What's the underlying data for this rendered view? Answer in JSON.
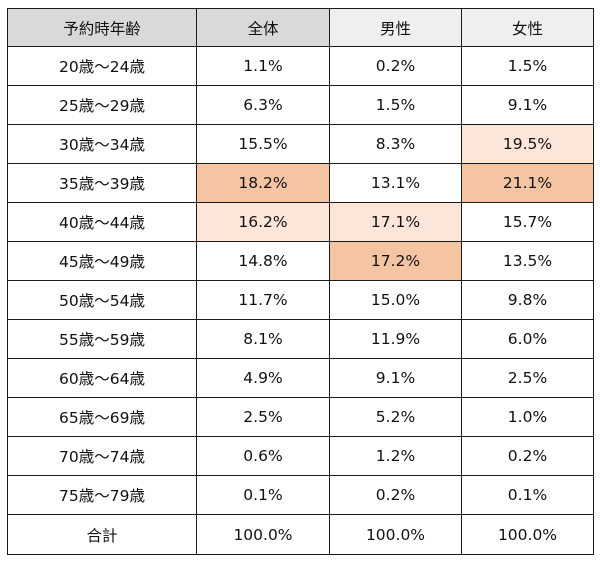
{
  "table": {
    "headers": [
      "予約時年齢",
      "全体",
      "男性",
      "女性"
    ],
    "rows": [
      {
        "age": "20歳～24歳",
        "all": "1.1%",
        "male": "0.2%",
        "female": "1.5%"
      },
      {
        "age": "25歳～29歳",
        "all": "6.3%",
        "male": "1.5%",
        "female": "9.1%"
      },
      {
        "age": "30歳～34歳",
        "all": "15.5%",
        "male": "8.3%",
        "female": "19.5%"
      },
      {
        "age": "35歳～39歳",
        "all": "18.2%",
        "male": "13.1%",
        "female": "21.1%"
      },
      {
        "age": "40歳～44歳",
        "all": "16.2%",
        "male": "17.1%",
        "female": "15.7%"
      },
      {
        "age": "45歳～49歳",
        "all": "14.8%",
        "male": "17.2%",
        "female": "13.5%"
      },
      {
        "age": "50歳～54歳",
        "all": "11.7%",
        "male": "15.0%",
        "female": "9.8%"
      },
      {
        "age": "55歳～59歳",
        "all": "8.1%",
        "male": "11.9%",
        "female": "6.0%"
      },
      {
        "age": "60歳～64歳",
        "all": "4.9%",
        "male": "9.1%",
        "female": "2.5%"
      },
      {
        "age": "65歳～69歳",
        "all": "2.5%",
        "male": "5.2%",
        "female": "1.0%"
      },
      {
        "age": "70歳～74歳",
        "all": "0.6%",
        "male": "1.2%",
        "female": "0.2%"
      },
      {
        "age": "75歳～79歳",
        "all": "0.1%",
        "male": "0.2%",
        "female": "0.1%"
      }
    ],
    "total": {
      "label": "合計",
      "all": "100.0%",
      "male": "100.0%",
      "female": "100.0%"
    }
  },
  "colors": {
    "header_dark": "#d9d9d9",
    "header_light": "#efefef",
    "highlight_strong": "#f5c4a2",
    "highlight_light": "#fce6d9"
  }
}
